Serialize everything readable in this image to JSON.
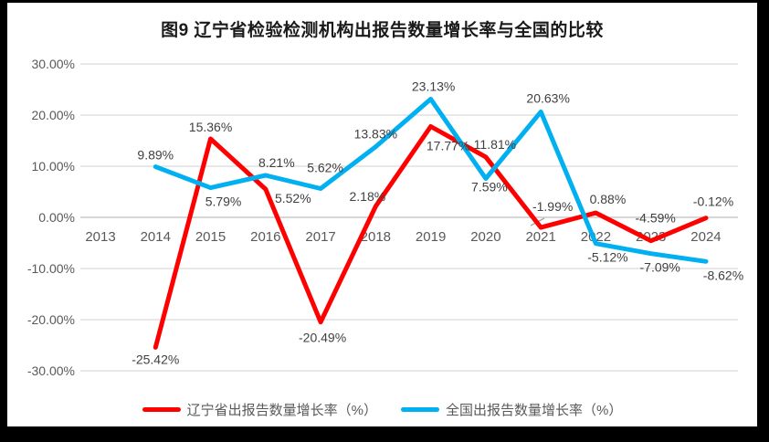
{
  "title": "图9  辽宁省检验检测机构出报告数量增长率与全国的比较",
  "chart_data": {
    "type": "line",
    "categories": [
      "2013",
      "2014",
      "2015",
      "2016",
      "2017",
      "2018",
      "2019",
      "2020",
      "2021",
      "2022",
      "2023",
      "2024"
    ],
    "series": [
      {
        "name": "辽宁省出报告数量增长率（%）",
        "color": "#FF0000",
        "values": [
          null,
          -25.42,
          15.36,
          5.52,
          -20.49,
          2.18,
          17.77,
          11.81,
          -1.99,
          0.88,
          -4.59,
          -0.12
        ]
      },
      {
        "name": "全国出报告数量增长率（%）",
        "color": "#00B0F0",
        "values": [
          null,
          9.89,
          5.79,
          8.21,
          5.62,
          13.83,
          23.13,
          7.59,
          20.63,
          -5.12,
          -7.09,
          -8.62
        ]
      }
    ],
    "title": "图9  辽宁省检验检测机构出报告数量增长率与全国的比较",
    "xlabel": "",
    "ylabel": "",
    "y_ticks": [
      30,
      20,
      10,
      0,
      -10,
      -20,
      -30
    ],
    "y_tick_labels": [
      "30.00%",
      "20.00%",
      "10.00%",
      "0.00%",
      "-10.00%",
      "-20.00%",
      "-30.00%"
    ],
    "ylim": [
      -30,
      30
    ],
    "value_format": "0.00%",
    "grid": true,
    "legend_position": "bottom"
  },
  "colors": {
    "grid_line": "#D9D9D9",
    "zero_axis_line": "#BFBFBF",
    "axis_text": "#595959",
    "data_label_text": "#404040",
    "frame": "#000000",
    "background": "#FFFFFF"
  }
}
